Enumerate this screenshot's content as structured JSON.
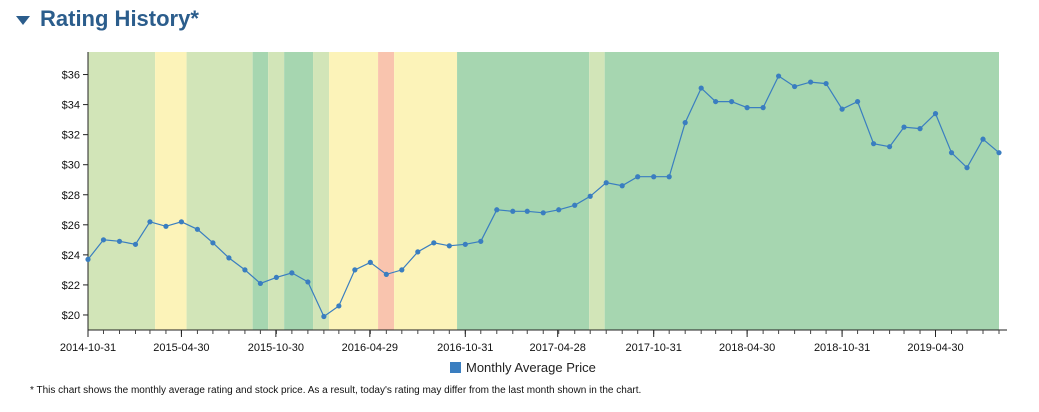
{
  "header": {
    "title": "Rating History*"
  },
  "legend": {
    "label": "Monthly Average Price"
  },
  "footnote": "* This chart shows the monthly average rating and stock price. As a result, today's rating may differ from the last month shown in the chart.",
  "colors": {
    "line": "#3a7ec0",
    "point": "#3a7ec0",
    "legend_swatch": "#3a7ec0",
    "band_light_green": "#d2e5b8",
    "band_green": "#a6d6b0",
    "band_yellow": "#fcf3b9",
    "band_red": "#f9c4ae"
  },
  "chart_data": {
    "type": "line",
    "title": "",
    "xlabel": "",
    "ylabel": "",
    "ylim": [
      19,
      37.5
    ],
    "xlim": [
      "2014-10-31",
      "2019-08-31"
    ],
    "y_ticks": [
      20,
      22,
      24,
      26,
      28,
      30,
      32,
      34,
      36
    ],
    "y_tick_labels": [
      "$20",
      "$22",
      "$24",
      "$26",
      "$28",
      "$30",
      "$32",
      "$34",
      "$36"
    ],
    "x_tick_labels": [
      "2014-10-31",
      "2015-04-30",
      "2015-10-30",
      "2016-04-29",
      "2016-10-31",
      "2017-04-28",
      "2017-10-31",
      "2018-04-30",
      "2018-10-31",
      "2019-04-30"
    ],
    "legend_placement": "bottom-center",
    "grid": false,
    "series": [
      {
        "name": "Monthly Average Price",
        "x": [
          "2014-10-31",
          "2014-11-30",
          "2014-12-31",
          "2015-01-31",
          "2015-02-28",
          "2015-03-31",
          "2015-04-30",
          "2015-05-31",
          "2015-06-30",
          "2015-07-31",
          "2015-08-31",
          "2015-09-30",
          "2015-10-31",
          "2015-11-30",
          "2015-12-31",
          "2016-01-31",
          "2016-02-29",
          "2016-03-31",
          "2016-04-30",
          "2016-05-31",
          "2016-06-30",
          "2016-07-31",
          "2016-08-31",
          "2016-09-30",
          "2016-10-31",
          "2016-11-30",
          "2016-12-31",
          "2017-01-31",
          "2017-02-28",
          "2017-03-31",
          "2017-04-30",
          "2017-05-31",
          "2017-06-30",
          "2017-07-31",
          "2017-08-31",
          "2017-09-30",
          "2017-10-31",
          "2017-11-30",
          "2017-12-31",
          "2018-01-31",
          "2018-02-28",
          "2018-03-31",
          "2018-04-30",
          "2018-05-31",
          "2018-06-30",
          "2018-07-31",
          "2018-08-31",
          "2018-09-30",
          "2018-10-31",
          "2018-11-30",
          "2018-12-31",
          "2019-01-31",
          "2019-02-28",
          "2019-03-31",
          "2019-04-30",
          "2019-05-31",
          "2019-06-30",
          "2019-07-31",
          "2019-08-31"
        ],
        "values": [
          23.7,
          25.0,
          24.9,
          24.7,
          26.2,
          25.9,
          26.2,
          25.7,
          24.8,
          23.8,
          23.0,
          22.1,
          22.5,
          22.8,
          22.2,
          19.9,
          20.6,
          23.0,
          23.5,
          22.7,
          23.0,
          24.2,
          24.8,
          24.6,
          24.7,
          24.9,
          27.0,
          26.9,
          26.9,
          26.8,
          27.0,
          27.3,
          27.9,
          28.8,
          28.6,
          29.2,
          29.2,
          29.2,
          32.8,
          35.1,
          34.2,
          34.2,
          33.8,
          33.8,
          35.9,
          35.2,
          35.5,
          35.4,
          33.7,
          34.2,
          31.4,
          31.2,
          32.5,
          32.4,
          33.4,
          30.8,
          29.8,
          31.7,
          30.8
        ]
      }
    ],
    "bands": [
      {
        "start": "2014-10-31",
        "end": "2015-03-10",
        "color": "band_light_green"
      },
      {
        "start": "2015-03-10",
        "end": "2015-05-10",
        "color": "band_yellow"
      },
      {
        "start": "2015-05-10",
        "end": "2015-09-15",
        "color": "band_light_green"
      },
      {
        "start": "2015-09-15",
        "end": "2015-10-15",
        "color": "band_green"
      },
      {
        "start": "2015-10-15",
        "end": "2015-11-15",
        "color": "band_light_green"
      },
      {
        "start": "2015-11-15",
        "end": "2016-01-10",
        "color": "band_green"
      },
      {
        "start": "2016-01-10",
        "end": "2016-02-10",
        "color": "band_light_green"
      },
      {
        "start": "2016-02-10",
        "end": "2016-05-15",
        "color": "band_yellow"
      },
      {
        "start": "2016-05-15",
        "end": "2016-06-15",
        "color": "band_red"
      },
      {
        "start": "2016-06-15",
        "end": "2016-10-15",
        "color": "band_yellow"
      },
      {
        "start": "2016-10-15",
        "end": "2017-06-28",
        "color": "band_green"
      },
      {
        "start": "2017-06-28",
        "end": "2017-07-28",
        "color": "band_light_green"
      },
      {
        "start": "2017-07-28",
        "end": "2019-08-31",
        "color": "band_green"
      }
    ]
  }
}
